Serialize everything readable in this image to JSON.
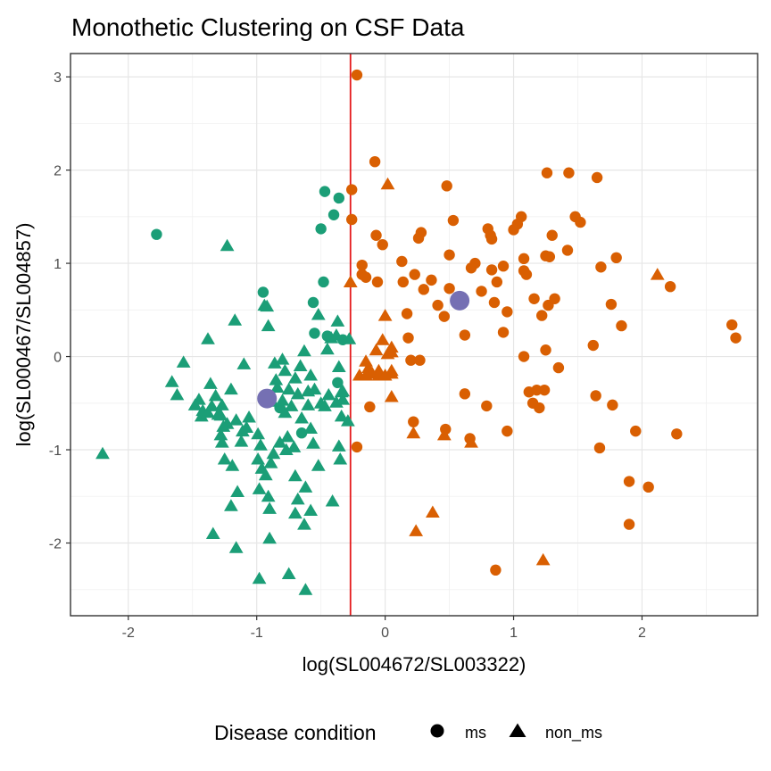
{
  "chart_data": {
    "type": "scatter",
    "title": "Monothetic Clustering on CSF Data",
    "xlabel": "log(SL004672/SL003322)",
    "ylabel": "log(SL000467/SL004857)",
    "xlim": [
      -2.45,
      2.9
    ],
    "ylim": [
      -2.78,
      3.25
    ],
    "x_ticks": [
      -2,
      -1,
      0,
      1,
      2
    ],
    "y_ticks": [
      -2,
      -1,
      0,
      1,
      2,
      3
    ],
    "grid": true,
    "split_line": {
      "x": -0.27,
      "color": "#e41a1c"
    },
    "cluster_colors": {
      "left": "#1b9e77",
      "right": "#d95f02",
      "centroid": "#7570b3"
    },
    "legend": {
      "title": "Disease condition",
      "position": "bottom",
      "items": [
        {
          "label": "ms",
          "shape": "circle"
        },
        {
          "label": "non_ms",
          "shape": "triangle"
        }
      ]
    },
    "centroids": [
      {
        "x": -0.92,
        "y": -0.45
      },
      {
        "x": 0.58,
        "y": 0.6
      }
    ],
    "series": [
      {
        "name": "ms",
        "shape": "circle",
        "points": [
          [
            -1.78,
            1.31
          ],
          [
            -0.47,
            1.77
          ],
          [
            -0.36,
            1.7
          ],
          [
            -0.4,
            1.52
          ],
          [
            -0.5,
            1.37
          ],
          [
            -0.48,
            0.8
          ],
          [
            -0.95,
            0.69
          ],
          [
            -0.56,
            0.58
          ],
          [
            -0.55,
            0.25
          ],
          [
            -0.45,
            0.22
          ],
          [
            -0.33,
            0.18
          ],
          [
            -0.82,
            -0.55
          ],
          [
            -0.65,
            -0.82
          ],
          [
            -0.37,
            -0.28
          ],
          [
            -0.22,
            3.02
          ],
          [
            -0.26,
            1.79
          ],
          [
            -0.26,
            1.47
          ],
          [
            -0.08,
            2.09
          ],
          [
            -0.18,
            0.98
          ],
          [
            -0.18,
            0.88
          ],
          [
            -0.15,
            0.85
          ],
          [
            -0.06,
            0.8
          ],
          [
            -0.07,
            1.3
          ],
          [
            -0.02,
            1.2
          ],
          [
            0.13,
            1.02
          ],
          [
            0.14,
            0.8
          ],
          [
            0.23,
            0.88
          ],
          [
            0.28,
            1.33
          ],
          [
            0.26,
            1.27
          ],
          [
            0.3,
            0.72
          ],
          [
            0.36,
            0.82
          ],
          [
            0.41,
            0.55
          ],
          [
            0.48,
            1.83
          ],
          [
            0.53,
            1.46
          ],
          [
            0.5,
            1.09
          ],
          [
            0.5,
            0.73
          ],
          [
            0.46,
            0.43
          ],
          [
            0.62,
            0.23
          ],
          [
            0.62,
            -0.4
          ],
          [
            0.79,
            -0.53
          ],
          [
            0.17,
            0.46
          ],
          [
            0.18,
            0.2
          ],
          [
            0.2,
            -0.04
          ],
          [
            0.27,
            -0.04
          ],
          [
            -0.12,
            -0.54
          ],
          [
            -0.22,
            -0.97
          ],
          [
            0.22,
            -0.7
          ],
          [
            0.47,
            -0.78
          ],
          [
            0.66,
            -0.88
          ],
          [
            0.86,
            -2.29
          ],
          [
            0.7,
            1.0
          ],
          [
            0.67,
            0.95
          ],
          [
            0.75,
            0.7
          ],
          [
            0.8,
            1.37
          ],
          [
            0.82,
            1.3
          ],
          [
            0.83,
            1.26
          ],
          [
            0.85,
            0.58
          ],
          [
            0.83,
            0.93
          ],
          [
            0.87,
            0.8
          ],
          [
            0.92,
            0.97
          ],
          [
            0.92,
            0.26
          ],
          [
            0.95,
            0.48
          ],
          [
            1.03,
            1.42
          ],
          [
            1.0,
            1.36
          ],
          [
            1.06,
            1.5
          ],
          [
            1.08,
            1.05
          ],
          [
            1.08,
            0.92
          ],
          [
            1.1,
            0.88
          ],
          [
            1.08,
            0.0
          ],
          [
            1.12,
            -0.38
          ],
          [
            1.18,
            -0.36
          ],
          [
            1.15,
            -0.5
          ],
          [
            1.2,
            -0.55
          ],
          [
            1.24,
            -0.36
          ],
          [
            1.16,
            0.62
          ],
          [
            1.22,
            0.44
          ],
          [
            1.25,
            1.08
          ],
          [
            1.28,
            1.07
          ],
          [
            1.27,
            0.55
          ],
          [
            1.32,
            0.62
          ],
          [
            1.26,
            1.97
          ],
          [
            1.3,
            1.3
          ],
          [
            1.35,
            -0.12
          ],
          [
            1.42,
            1.14
          ],
          [
            1.43,
            1.97
          ],
          [
            1.48,
            1.5
          ],
          [
            1.52,
            1.44
          ],
          [
            1.65,
            1.92
          ],
          [
            1.68,
            0.96
          ],
          [
            1.62,
            0.12
          ],
          [
            1.64,
            -0.42
          ],
          [
            1.67,
            -0.98
          ],
          [
            1.76,
            0.56
          ],
          [
            1.8,
            1.06
          ],
          [
            1.84,
            0.33
          ],
          [
            1.77,
            -0.52
          ],
          [
            1.25,
            0.07
          ],
          [
            0.95,
            -0.8
          ],
          [
            1.9,
            -1.34
          ],
          [
            1.9,
            -1.8
          ],
          [
            1.95,
            -0.8
          ],
          [
            2.05,
            -1.4
          ],
          [
            2.22,
            0.75
          ],
          [
            2.27,
            -0.83
          ],
          [
            2.7,
            0.34
          ],
          [
            2.73,
            0.2
          ]
        ]
      },
      {
        "name": "non_ms",
        "shape": "triangle",
        "points": [
          [
            -2.2,
            -1.04
          ],
          [
            -1.23,
            1.19
          ],
          [
            -1.17,
            0.39
          ],
          [
            -0.94,
            0.55
          ],
          [
            -0.92,
            0.54
          ],
          [
            -0.91,
            0.33
          ],
          [
            -1.38,
            0.19
          ],
          [
            -1.1,
            -0.08
          ],
          [
            -1.57,
            -0.06
          ],
          [
            -1.66,
            -0.27
          ],
          [
            -1.62,
            -0.41
          ],
          [
            -1.36,
            -0.29
          ],
          [
            -1.45,
            -0.46
          ],
          [
            -1.48,
            -0.52
          ],
          [
            -1.42,
            -0.58
          ],
          [
            -1.43,
            -0.64
          ],
          [
            -1.38,
            -0.6
          ],
          [
            -1.32,
            -0.42
          ],
          [
            -1.35,
            -0.53
          ],
          [
            -1.3,
            -0.62
          ],
          [
            -1.2,
            -0.35
          ],
          [
            -1.27,
            -0.52
          ],
          [
            -1.28,
            -0.63
          ],
          [
            -1.23,
            -0.72
          ],
          [
            -1.26,
            -0.75
          ],
          [
            -1.28,
            -0.84
          ],
          [
            -1.27,
            -0.92
          ],
          [
            -1.25,
            -1.1
          ],
          [
            -1.16,
            -0.68
          ],
          [
            -1.11,
            -0.8
          ],
          [
            -1.19,
            -1.17
          ],
          [
            -1.12,
            -0.91
          ],
          [
            -1.06,
            -0.65
          ],
          [
            -1.08,
            -0.76
          ],
          [
            -0.99,
            -0.83
          ],
          [
            -0.97,
            -0.95
          ],
          [
            -0.99,
            -1.1
          ],
          [
            -0.96,
            -1.2
          ],
          [
            -0.93,
            -1.27
          ],
          [
            -0.89,
            -1.14
          ],
          [
            -0.87,
            -1.04
          ],
          [
            -0.82,
            -0.92
          ],
          [
            -1.15,
            -1.45
          ],
          [
            -1.2,
            -1.6
          ],
          [
            -1.34,
            -1.9
          ],
          [
            -1.16,
            -2.05
          ],
          [
            -0.98,
            -2.38
          ],
          [
            -0.98,
            -1.42
          ],
          [
            -0.91,
            -1.5
          ],
          [
            -0.9,
            -1.63
          ],
          [
            -0.9,
            -1.95
          ],
          [
            -0.77,
            -1.0
          ],
          [
            -0.76,
            -0.86
          ],
          [
            -0.71,
            -0.97
          ],
          [
            -0.7,
            -1.28
          ],
          [
            -0.68,
            -1.53
          ],
          [
            -0.7,
            -1.68
          ],
          [
            -0.62,
            -1.4
          ],
          [
            -0.58,
            -1.65
          ],
          [
            -0.63,
            -1.8
          ],
          [
            -0.75,
            -2.33
          ],
          [
            -0.62,
            -2.5
          ],
          [
            -0.58,
            -0.77
          ],
          [
            -0.56,
            -0.93
          ],
          [
            -0.52,
            -1.17
          ],
          [
            -0.5,
            -0.5
          ],
          [
            -0.47,
            -0.53
          ],
          [
            -0.55,
            -0.35
          ],
          [
            -0.44,
            -0.41
          ],
          [
            -0.38,
            -0.49
          ],
          [
            -0.34,
            -0.38
          ],
          [
            -0.33,
            -0.46
          ],
          [
            -0.34,
            -0.64
          ],
          [
            -0.36,
            -0.96
          ],
          [
            -0.35,
            -1.1
          ],
          [
            -0.41,
            -1.55
          ],
          [
            -0.86,
            -0.07
          ],
          [
            -0.8,
            -0.03
          ],
          [
            -0.78,
            -0.15
          ],
          [
            -0.75,
            -0.35
          ],
          [
            -0.73,
            -0.53
          ],
          [
            -0.7,
            -0.23
          ],
          [
            -0.66,
            -0.1
          ],
          [
            -0.63,
            0.06
          ],
          [
            -0.6,
            -0.37
          ],
          [
            -0.58,
            -0.2
          ],
          [
            -0.6,
            -0.52
          ],
          [
            -0.84,
            -0.33
          ],
          [
            -0.88,
            -0.48
          ],
          [
            -0.8,
            -0.47
          ],
          [
            -0.85,
            -0.25
          ],
          [
            -0.68,
            -0.4
          ],
          [
            -0.78,
            -0.6
          ],
          [
            -0.65,
            -0.66
          ],
          [
            -0.37,
            0.38
          ],
          [
            -0.42,
            0.2
          ],
          [
            -0.45,
            0.08
          ],
          [
            -0.52,
            0.45
          ],
          [
            -0.38,
            0.23
          ],
          [
            -0.28,
            0.19
          ],
          [
            -0.36,
            -0.11
          ],
          [
            -0.33,
            -0.37
          ],
          [
            -0.29,
            -0.69
          ],
          [
            -0.13,
            -0.12
          ],
          [
            -0.15,
            -0.05
          ],
          [
            -0.05,
            -0.15
          ],
          [
            -0.07,
            0.07
          ],
          [
            -0.02,
            0.18
          ],
          [
            0.0,
            0.44
          ],
          [
            -0.27,
            0.8
          ],
          [
            0.02,
            0.03
          ],
          [
            0.05,
            0.1
          ],
          [
            -0.2,
            -0.2
          ],
          [
            -0.15,
            -0.2
          ],
          [
            -0.1,
            -0.18
          ],
          [
            -0.05,
            -0.2
          ],
          [
            0.0,
            -0.2
          ],
          [
            0.05,
            -0.15
          ],
          [
            0.05,
            0.05
          ],
          [
            0.02,
            1.85
          ],
          [
            0.05,
            -0.18
          ],
          [
            0.05,
            -0.43
          ],
          [
            0.22,
            -0.82
          ],
          [
            0.46,
            -0.84
          ],
          [
            0.37,
            -1.67
          ],
          [
            0.24,
            -1.87
          ],
          [
            0.67,
            -0.92
          ],
          [
            1.23,
            -2.18
          ],
          [
            2.12,
            0.88
          ]
        ]
      }
    ]
  }
}
